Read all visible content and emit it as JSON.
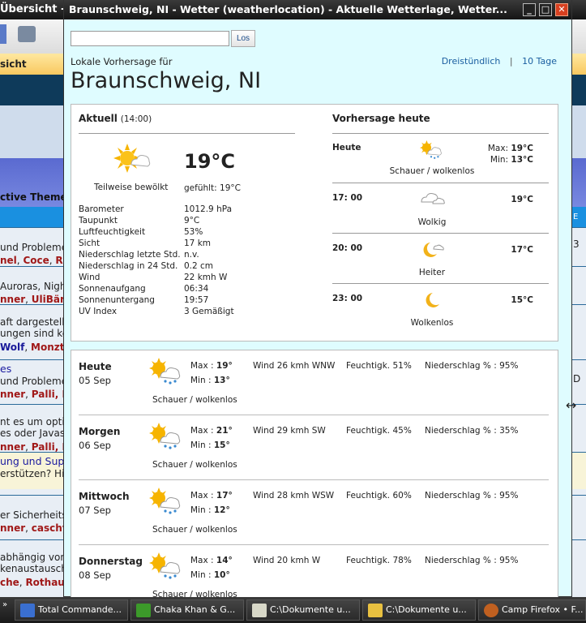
{
  "background": {
    "title_fragment": "Übersicht -",
    "nav_fragment": "sicht",
    "theme_fragment": "ctive Theme",
    "right_letters": [
      "E",
      "3",
      "D"
    ],
    "rows": [
      {
        "line1": "und Probleme",
        "line2": [
          {
            "t": "nel",
            "c": "red"
          },
          {
            "t": ", ",
            "c": ""
          },
          {
            "t": "Coce",
            "c": "red"
          },
          {
            "t": ", ",
            "c": ""
          },
          {
            "t": "Ro",
            "c": "red"
          }
        ]
      },
      {
        "line1": "Auroras, Night",
        "line2": [
          {
            "t": "nner",
            "c": "red"
          },
          {
            "t": ", ",
            "c": ""
          },
          {
            "t": "UliBär",
            "c": "red"
          }
        ]
      },
      {
        "line1": "aft dargestellt",
        "line1b": "ungen sind ke",
        "line2": [
          {
            "t": " Wolf",
            "c": "blu"
          },
          {
            "t": ", ",
            "c": ""
          },
          {
            "t": "Monzt",
            "c": "red"
          }
        ]
      },
      {
        "title": "es",
        "line1": "und Probleme",
        "line2": [
          {
            "t": "nner",
            "c": "red"
          },
          {
            "t": ", ",
            "c": ""
          },
          {
            "t": "Palli",
            "c": "red"
          },
          {
            "t": ", F",
            "c": "red"
          }
        ]
      },
      {
        "line1": "nt es um optis",
        "line1b": "es oder Javas",
        "line2": [
          {
            "t": "nner",
            "c": "red"
          },
          {
            "t": ", ",
            "c": ""
          },
          {
            "t": "Palli",
            "c": "red"
          },
          {
            "t": ", F",
            "c": "red"
          }
        ]
      },
      {
        "title": "ung und Sup",
        "line1": "erstützen? Hie"
      },
      {
        "line1": "er Sicherheitsl",
        "line2": [
          {
            "t": "nner",
            "c": "red"
          },
          {
            "t": ", ",
            "c": ""
          },
          {
            "t": "caschy",
            "c": "red"
          }
        ]
      },
      {
        "line1": "abhängig von",
        "line1b": "kenaustausch",
        "line2": [
          {
            "t": "che",
            "c": "red"
          },
          {
            "t": ", ",
            "c": ""
          },
          {
            "t": "Rothaut",
            "c": "red"
          }
        ]
      }
    ]
  },
  "window": {
    "title": "Braunschweig, NI -  Wetter (weatherlocation) - Aktuelle Wetterlage, Wetter...",
    "search": {
      "value": "",
      "button": "Los"
    },
    "subtitle": "Lokale Vorhersage für",
    "city": "Braunschweig, NI",
    "links": [
      "Dreistündlich",
      "|",
      "10 Tage"
    ],
    "current": {
      "heading": "Aktuell",
      "time": "(14:00)",
      "icon": "partly-cloudy-icon",
      "condition": "Teilweise bewölkt",
      "temp": "19°C",
      "feels": "gefühlt: 19°C",
      "details": [
        [
          "Barometer",
          "1012.9 hPa"
        ],
        [
          "Taupunkt",
          "9°C"
        ],
        [
          "Luftfeuchtigkeit",
          "53%"
        ],
        [
          "Sicht",
          "17 km"
        ],
        [
          "Niederschlag letzte Std.",
          "n.v."
        ],
        [
          "Niederschlag in 24 Std.",
          "0.2 cm"
        ],
        [
          "Wind",
          "22 kmh W"
        ],
        [
          "Sonnenaufgang",
          "06:34"
        ],
        [
          "Sonnenuntergang",
          "19:57"
        ],
        [
          "UV Index",
          "3 Gemäßigt"
        ]
      ]
    },
    "today": {
      "heading": "Vorhersage heute",
      "rows": [
        {
          "time": "Heute",
          "icon": "showers-sun-icon",
          "cond": "Schauer / wolkenlos",
          "max_label": "Max:",
          "max": "19°C",
          "min_label": "Min:",
          "min": "13°C"
        },
        {
          "time": "17: 00",
          "icon": "cloudy-icon",
          "cond": "Wolkig",
          "temp": "19°C"
        },
        {
          "time": "20: 00",
          "icon": "moon-cloud-icon",
          "cond": "Heiter",
          "temp": "17°C"
        },
        {
          "time": "23: 00",
          "icon": "moon-icon",
          "cond": "Wolkenlos",
          "temp": "15°C"
        }
      ]
    },
    "days": [
      {
        "day": "Heute",
        "date": "05 Sep",
        "max": "19°",
        "min": "13°",
        "wind": "Wind 26 kmh WNW",
        "hum": "Feuchtigk. 51%",
        "precip": "Niederschlag % : 95%",
        "cond": "Schauer / wolkenlos"
      },
      {
        "day": "Morgen",
        "date": "06 Sep",
        "max": "21°",
        "min": "15°",
        "wind": "Wind 29 kmh SW",
        "hum": "Feuchtigk. 45%",
        "precip": "Niederschlag % : 35%",
        "cond": "Schauer / wolkenlos"
      },
      {
        "day": "Mittwoch",
        "date": "07 Sep",
        "max": "17°",
        "min": "12°",
        "wind": "Wind 28 kmh WSW",
        "hum": "Feuchtigk. 60%",
        "precip": "Niederschlag % : 95%",
        "cond": "Schauer / wolkenlos"
      },
      {
        "day": "Donnerstag",
        "date": "08 Sep",
        "max": "14°",
        "min": "10°",
        "wind": "Wind 20 kmh W",
        "hum": "Feuchtigk. 78%",
        "precip": "Niederschlag % : 95%",
        "cond": "Schauer / wolkenlos"
      }
    ],
    "max_label": "Max : ",
    "min_label": "Min : "
  },
  "taskbar": {
    "items": [
      {
        "label": "Total Commande...",
        "icon": "floppy-icon",
        "color": "#3a6fd0"
      },
      {
        "label": "Chaka Khan & G...",
        "icon": "mp3directcut-icon",
        "color": "#3c9a2a"
      },
      {
        "label": "C:\\Dokumente u...",
        "icon": "notepad-icon",
        "color": "#d8d8c8"
      },
      {
        "label": "C:\\Dokumente u...",
        "icon": "folder-icon",
        "color": "#e8c040"
      },
      {
        "label": "Camp Firefox • F...",
        "icon": "firefox-icon",
        "color": "#c06020"
      }
    ]
  }
}
